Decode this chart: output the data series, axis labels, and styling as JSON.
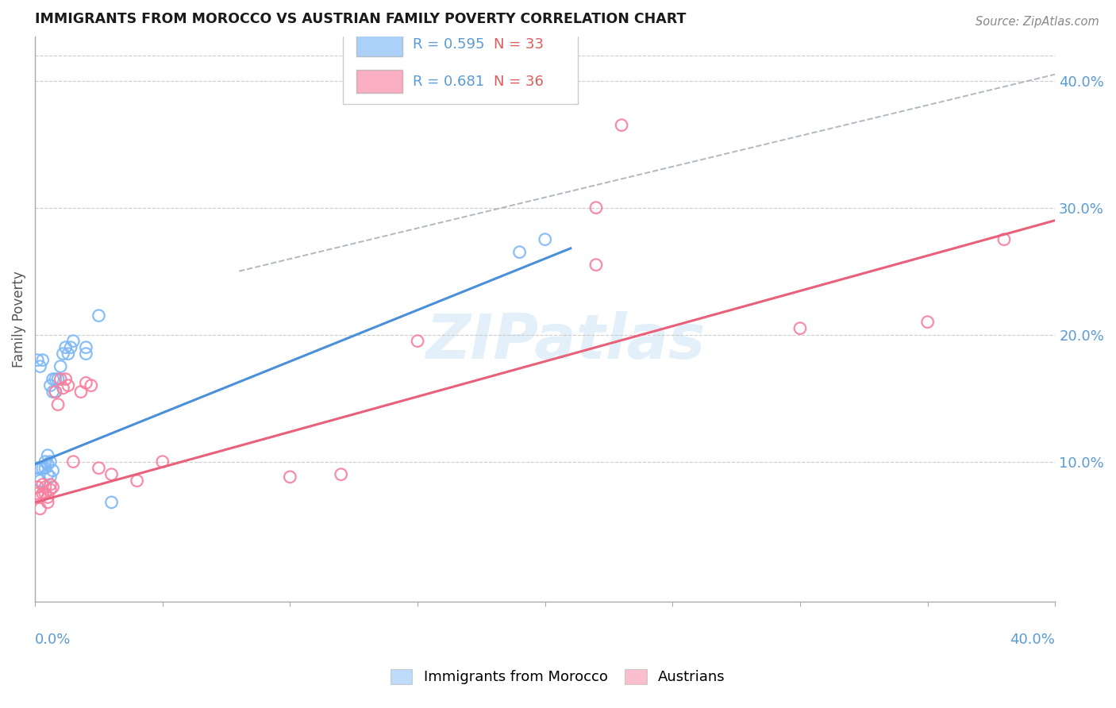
{
  "title": "IMMIGRANTS FROM MOROCCO VS AUSTRIAN FAMILY POVERTY CORRELATION CHART",
  "source": "Source: ZipAtlas.com",
  "ylabel": "Family Poverty",
  "right_yticks": [
    "40.0%",
    "30.0%",
    "20.0%",
    "10.0%"
  ],
  "right_ytick_vals": [
    0.4,
    0.3,
    0.2,
    0.1
  ],
  "xlim": [
    0.0,
    0.4
  ],
  "ylim": [
    -0.01,
    0.435
  ],
  "blue_color": "#7eb8f7",
  "pink_color": "#f7819f",
  "blue_line_color": "#4a90d9",
  "pink_line_color": "#e8607a",
  "diag_line_color": "#b0b8c0",
  "blue_scatter": [
    [
      0.001,
      0.095
    ],
    [
      0.001,
      0.18
    ],
    [
      0.002,
      0.175
    ],
    [
      0.002,
      0.095
    ],
    [
      0.002,
      0.085
    ],
    [
      0.003,
      0.18
    ],
    [
      0.003,
      0.095
    ],
    [
      0.004,
      0.1
    ],
    [
      0.004,
      0.095
    ],
    [
      0.005,
      0.098
    ],
    [
      0.005,
      0.105
    ],
    [
      0.005,
      0.09
    ],
    [
      0.006,
      0.1
    ],
    [
      0.006,
      0.088
    ],
    [
      0.006,
      0.16
    ],
    [
      0.007,
      0.093
    ],
    [
      0.007,
      0.155
    ],
    [
      0.007,
      0.165
    ],
    [
      0.008,
      0.155
    ],
    [
      0.008,
      0.165
    ],
    [
      0.009,
      0.165
    ],
    [
      0.01,
      0.175
    ],
    [
      0.011,
      0.185
    ],
    [
      0.012,
      0.19
    ],
    [
      0.013,
      0.185
    ],
    [
      0.014,
      0.19
    ],
    [
      0.015,
      0.195
    ],
    [
      0.02,
      0.185
    ],
    [
      0.02,
      0.19
    ],
    [
      0.025,
      0.215
    ],
    [
      0.03,
      0.068
    ],
    [
      0.19,
      0.265
    ],
    [
      0.2,
      0.275
    ]
  ],
  "pink_scatter": [
    [
      0.001,
      0.075
    ],
    [
      0.001,
      0.08
    ],
    [
      0.002,
      0.063
    ],
    [
      0.002,
      0.072
    ],
    [
      0.003,
      0.075
    ],
    [
      0.003,
      0.082
    ],
    [
      0.004,
      0.08
    ],
    [
      0.004,
      0.075
    ],
    [
      0.005,
      0.072
    ],
    [
      0.005,
      0.068
    ],
    [
      0.006,
      0.082
    ],
    [
      0.006,
      0.078
    ],
    [
      0.007,
      0.08
    ],
    [
      0.008,
      0.155
    ],
    [
      0.009,
      0.145
    ],
    [
      0.01,
      0.165
    ],
    [
      0.011,
      0.158
    ],
    [
      0.012,
      0.165
    ],
    [
      0.013,
      0.16
    ],
    [
      0.015,
      0.1
    ],
    [
      0.018,
      0.155
    ],
    [
      0.02,
      0.162
    ],
    [
      0.022,
      0.16
    ],
    [
      0.025,
      0.095
    ],
    [
      0.03,
      0.09
    ],
    [
      0.04,
      0.085
    ],
    [
      0.05,
      0.1
    ],
    [
      0.1,
      0.088
    ],
    [
      0.12,
      0.09
    ],
    [
      0.15,
      0.195
    ],
    [
      0.22,
      0.255
    ],
    [
      0.22,
      0.3
    ],
    [
      0.23,
      0.365
    ],
    [
      0.3,
      0.205
    ],
    [
      0.35,
      0.21
    ],
    [
      0.38,
      0.275
    ]
  ],
  "blue_trend_x": [
    0.0,
    0.21
  ],
  "blue_trend_y": [
    0.098,
    0.268
  ],
  "pink_trend_x": [
    0.0,
    0.4
  ],
  "pink_trend_y": [
    0.068,
    0.29
  ],
  "diag_trend_x": [
    0.08,
    0.4
  ],
  "diag_trend_y": [
    0.25,
    0.405
  ],
  "legend1_label_r": "R = 0.595",
  "legend1_label_n": "N = 33",
  "legend2_label_r": "R = 0.681",
  "legend2_label_n": "N = 36",
  "watermark": "ZIPatlas",
  "bottom_legend": [
    "Immigrants from Morocco",
    "Austrians"
  ]
}
